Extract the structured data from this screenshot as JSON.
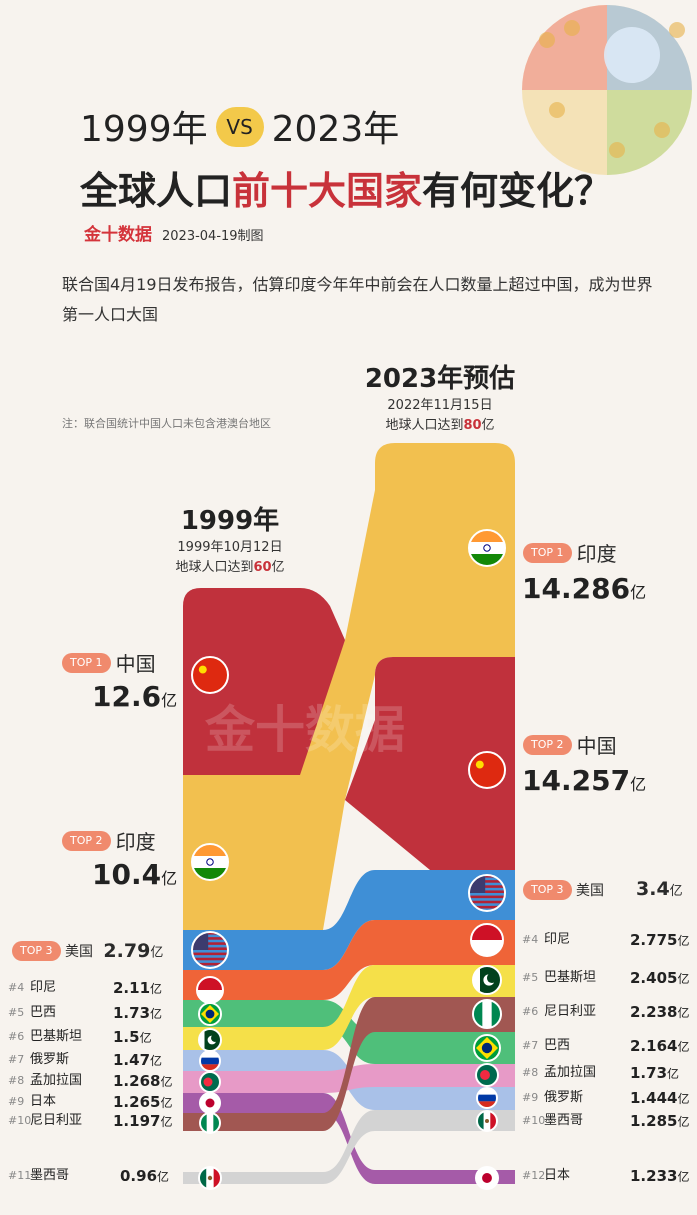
{
  "header": {
    "year1": "1999年",
    "vs": "VS",
    "year2": "2023年",
    "title_pre": "全球人口",
    "title_hl": "前十大国家",
    "title_post": "有何变化？",
    "logo": "金十数据",
    "date": "2023-04-19制图",
    "watermark": "金十数据"
  },
  "description": "联合国4月19日发布报告，估算印度今年年中前会在人口数量上超过中国，成为世界第一人口大国",
  "note": "注：联合国统计中国人口未包含港澳台地区",
  "colors": {
    "中国": "#c0313c",
    "印度": "#f2c04f",
    "美国": "#3f8fd6",
    "印尼": "#ef6438",
    "巴西": "#4fbf7a",
    "巴基斯坦": "#f5e049",
    "俄罗斯": "#a9c1e8",
    "孟加拉国": "#e79ac7",
    "日本": "#a55ba8",
    "尼日利亚": "#a15752",
    "墨西哥": "#d3d3d3"
  },
  "chart_data": {
    "type": "sankey",
    "unit": "亿",
    "columns": [
      {
        "title": "1999年",
        "sub_date": "1999年10月12日",
        "sub_pop_pre": "地球人口达到",
        "sub_pop": "60",
        "sub_pop_unit": "亿",
        "entries": [
          {
            "rank": "TOP 1",
            "country": "中国",
            "value": 12.6,
            "value_label": "12.6"
          },
          {
            "rank": "TOP 2",
            "country": "印度",
            "value": 10.4,
            "value_label": "10.4"
          },
          {
            "rank": "TOP 3",
            "country": "美国",
            "value": 2.79,
            "value_label": "2.79"
          },
          {
            "rank": "#4",
            "country": "印尼",
            "value": 2.11,
            "value_label": "2.11"
          },
          {
            "rank": "#5",
            "country": "巴西",
            "value": 1.73,
            "value_label": "1.73"
          },
          {
            "rank": "#6",
            "country": "巴基斯坦",
            "value": 1.5,
            "value_label": "1.5"
          },
          {
            "rank": "#7",
            "country": "俄罗斯",
            "value": 1.47,
            "value_label": "1.47"
          },
          {
            "rank": "#8",
            "country": "孟加拉国",
            "value": 1.268,
            "value_label": "1.268"
          },
          {
            "rank": "#9",
            "country": "日本",
            "value": 1.265,
            "value_label": "1.265"
          },
          {
            "rank": "#10",
            "country": "尼日利亚",
            "value": 1.197,
            "value_label": "1.197"
          },
          {
            "rank": "#11",
            "country": "墨西哥",
            "value": 0.96,
            "value_label": "0.96"
          }
        ]
      },
      {
        "title": "2023年预估",
        "sub_date": "2022年11月15日",
        "sub_pop_pre": "地球人口达到",
        "sub_pop": "80",
        "sub_pop_unit": "亿",
        "entries": [
          {
            "rank": "TOP 1",
            "country": "印度",
            "value": 14.286,
            "value_label": "14.286"
          },
          {
            "rank": "TOP 2",
            "country": "中国",
            "value": 14.257,
            "value_label": "14.257"
          },
          {
            "rank": "TOP 3",
            "country": "美国",
            "value": 3.4,
            "value_label": "3.4"
          },
          {
            "rank": "#4",
            "country": "印尼",
            "value": 2.775,
            "value_label": "2.775"
          },
          {
            "rank": "#5",
            "country": "巴基斯坦",
            "value": 2.405,
            "value_label": "2.405"
          },
          {
            "rank": "#6",
            "country": "尼日利亚",
            "value": 2.238,
            "value_label": "2.238"
          },
          {
            "rank": "#7",
            "country": "巴西",
            "value": 2.164,
            "value_label": "2.164"
          },
          {
            "rank": "#8",
            "country": "孟加拉国",
            "value": 1.73,
            "value_label": "1.73"
          },
          {
            "rank": "#9",
            "country": "俄罗斯",
            "value": 1.444,
            "value_label": "1.444"
          },
          {
            "rank": "#10",
            "country": "墨西哥",
            "value": 1.285,
            "value_label": "1.285"
          },
          {
            "rank": "#12",
            "country": "日本",
            "value": 1.233,
            "value_label": "1.233"
          }
        ]
      }
    ]
  }
}
